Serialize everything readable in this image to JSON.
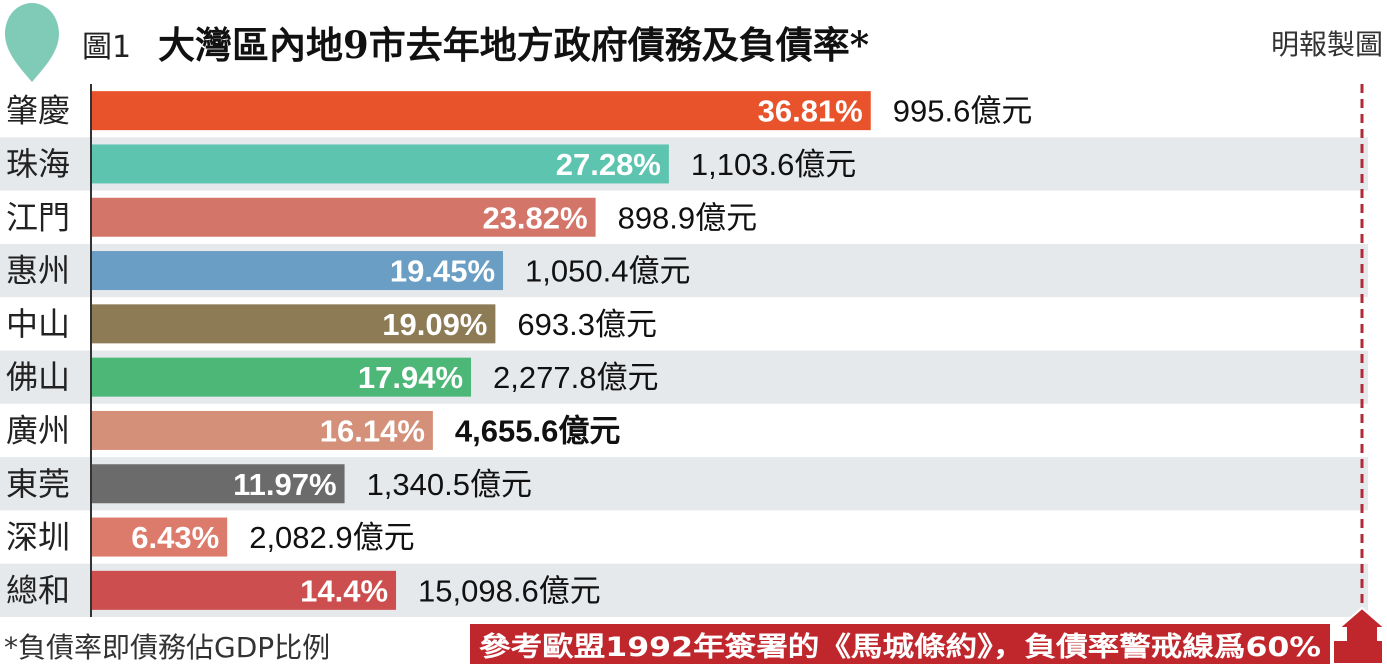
{
  "header": {
    "figure_label": "圖1",
    "title": "大灣區內地9市去年地方政府債務及負債率*",
    "credit": "明報製圖"
  },
  "footnote": "*負債率即債務佔GDP比例",
  "reference_note": "參考歐盟1992年簽署的《馬城條約》，負債率警戒線爲60%",
  "colors": {
    "row_stripe": "#e6e9ec",
    "axis": "#333333",
    "reference_line": "#b02a37",
    "warn_bg": "#c0272d",
    "warn_text": "#ffffff",
    "bar_label": "#ffffff"
  },
  "chart_data": {
    "type": "bar",
    "orientation": "horizontal",
    "title": "大灣區內地9市去年地方政府債務及負債率*",
    "categories": [
      "肇慶",
      "珠海",
      "江門",
      "惠州",
      "中山",
      "佛山",
      "廣州",
      "東莞",
      "深圳",
      "總和"
    ],
    "values": [
      36.81,
      27.28,
      23.82,
      19.45,
      19.09,
      17.94,
      16.14,
      11.97,
      6.43,
      14.4
    ],
    "value_labels": [
      "36.81%",
      "27.28%",
      "23.82%",
      "19.45%",
      "19.09%",
      "17.94%",
      "16.14%",
      "11.97%",
      "6.43%",
      "14.4%"
    ],
    "debt_labels": [
      "995.6億元",
      "1,103.6億元",
      "898.9億元",
      "1,050.4億元",
      "693.3億元",
      "2,277.8億元",
      "4,655.6億元",
      "1,340.5億元",
      "2,082.9億元",
      "15,098.6億元"
    ],
    "bold_debt_index": 6,
    "bar_colors": [
      "#e8532b",
      "#5dc4b0",
      "#d4756a",
      "#6a9ec4",
      "#8c7b55",
      "#4cb777",
      "#d49079",
      "#6b6b6b",
      "#dc7b6c",
      "#cc4e4e"
    ],
    "xlim": [
      0,
      60
    ],
    "reference_value": 60,
    "grid": false,
    "legend": "none"
  }
}
